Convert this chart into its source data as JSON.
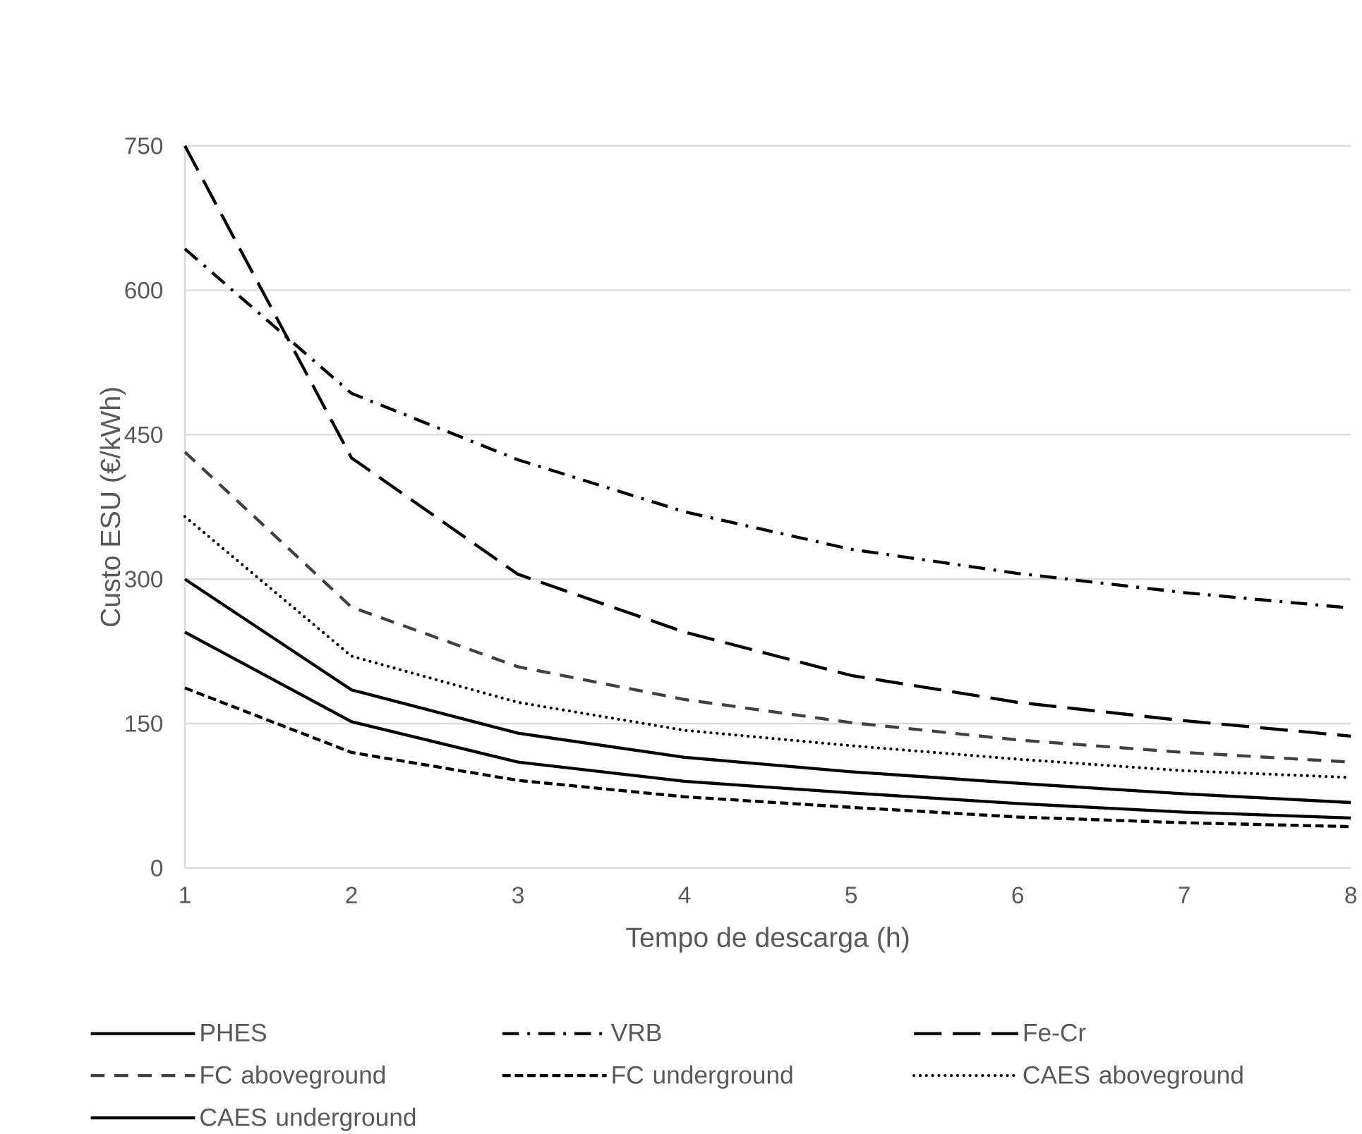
{
  "chart_data": {
    "type": "line",
    "xlabel": "Tempo de descarga (h)",
    "ylabel": "Custo ESU (€/kWh)",
    "x": [
      1,
      2,
      3,
      4,
      5,
      6,
      7,
      8
    ],
    "xlim": [
      1,
      8
    ],
    "xticks": [
      1,
      2,
      3,
      4,
      5,
      6,
      7,
      8
    ],
    "ylim": [
      0,
      750
    ],
    "yticks": [
      0,
      150,
      300,
      450,
      600,
      750
    ],
    "grid": "y",
    "legend": "bottom",
    "marker": "none",
    "series": [
      {
        "name": "PHES",
        "color": "#000000",
        "line_style": "solid",
        "values": [
          245,
          152,
          110,
          90,
          78,
          67,
          58,
          52
        ]
      },
      {
        "name": "VRB",
        "color": "#000000",
        "line_style": "dashdot",
        "values": [
          643,
          493,
          424,
          370,
          331,
          306,
          286,
          270
        ]
      },
      {
        "name": "Fe-Cr",
        "color": "#000000",
        "line_style": "longdash",
        "values": [
          750,
          426,
          305,
          245,
          200,
          172,
          153,
          137
        ]
      },
      {
        "name": "FC aboveground",
        "color": "#404040",
        "line_style": "dashed",
        "values": [
          432,
          271,
          209,
          175,
          151,
          133,
          120,
          110
        ]
      },
      {
        "name": "FC underground",
        "color": "#000000",
        "line_style": "shortdash",
        "values": [
          187,
          120,
          91,
          74,
          63,
          53,
          47,
          43
        ]
      },
      {
        "name": "CAES aboveground",
        "color": "#000000",
        "line_style": "dotted",
        "values": [
          365,
          220,
          172,
          143,
          127,
          113,
          101,
          94
        ]
      },
      {
        "name": "CAES underground",
        "color": "#000000",
        "line_style": "solid",
        "values": [
          300,
          185,
          140,
          115,
          100,
          88,
          77,
          68
        ]
      }
    ]
  }
}
